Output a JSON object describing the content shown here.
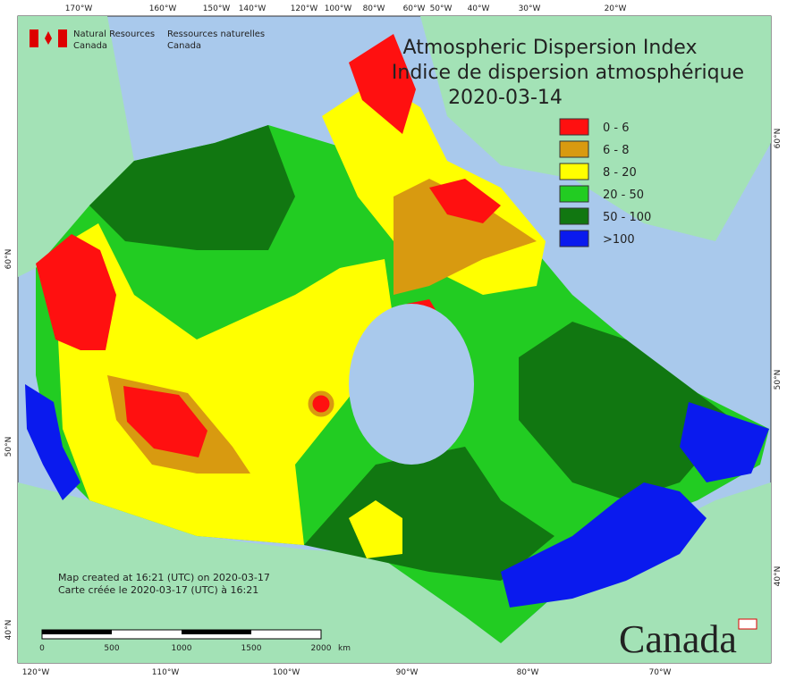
{
  "header": {
    "agency_en": [
      "Natural Resources",
      "Canada"
    ],
    "agency_fr": [
      "Ressources naturelles",
      "Canada"
    ]
  },
  "title": [
    "Atmospheric Dispersion Index",
    "Indice de dispersion atmosphérique",
    "2020-03-14"
  ],
  "legend": [
    {
      "label": "0 - 6",
      "color": "#ff1010"
    },
    {
      "label": "6 - 8",
      "color": "#d89a10"
    },
    {
      "label": "8 - 20",
      "color": "#ffff00"
    },
    {
      "label": "20 - 50",
      "color": "#22cc22"
    },
    {
      "label": "50 - 100",
      "color": "#117711"
    },
    {
      "label": ">100",
      "color": "#0a1aee"
    }
  ],
  "top_longitudes": [
    "170°W",
    "160°W",
    "150°W",
    "140°W",
    "120°W",
    "100°W",
    "80°W",
    "60°W",
    "50°W",
    "40°W",
    "30°W",
    "20°W"
  ],
  "bottom_longitudes": [
    "120°W",
    "110°W",
    "100°W",
    "90°W",
    "80°W",
    "70°W"
  ],
  "left_latitudes": [
    "60°N",
    "50°N",
    "40°N"
  ],
  "right_latitudes": [
    "60°N",
    "50°N",
    "40°N"
  ],
  "footer": [
    "Map created at 16:21 (UTC) on 2020-03-17",
    "Carte créée le 2020-03-17 (UTC) à 16:21"
  ],
  "scale": {
    "labels": [
      "0",
      "500",
      "1000",
      "1500",
      "2000"
    ],
    "unit": "km"
  },
  "wordmark": "Canada"
}
